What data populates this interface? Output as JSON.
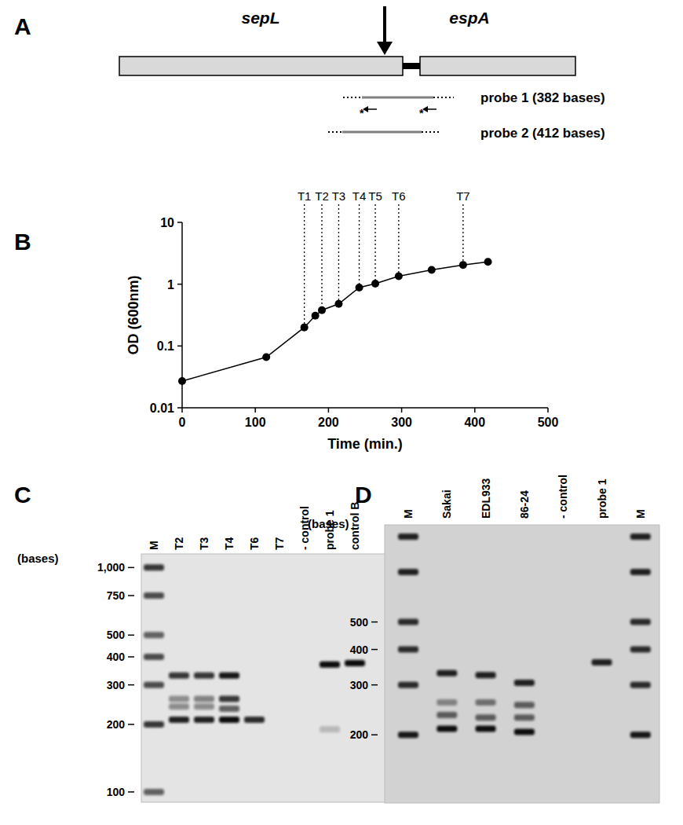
{
  "diagram": {
    "title": "A",
    "genes": [
      "sepL",
      "espA"
    ],
    "probes": [
      "probe 1 (382 bases)",
      "probe 2 (412 bases)"
    ],
    "primer_mark": "*"
  },
  "chart_data": [
    {
      "type": "line",
      "title": "B",
      "x_label": "Time (min.)",
      "y_label": "OD (600nm)",
      "x": [
        0,
        115,
        167,
        182,
        191,
        214,
        242,
        264,
        296,
        341,
        384,
        418
      ],
      "values": [
        0.027,
        0.066,
        0.2,
        0.31,
        0.38,
        0.48,
        0.88,
        1.02,
        1.35,
        1.7,
        2.05,
        2.3
      ],
      "xlim": [
        0,
        500
      ],
      "ylim": [
        0.01,
        10
      ],
      "xticks": [
        0,
        100,
        200,
        300,
        400,
        500
      ],
      "yticks": [
        0.01,
        0.1,
        1,
        10
      ],
      "log": "y",
      "color": "#000000",
      "marker": "circle",
      "line_style": "solid",
      "annotations": [
        {
          "label": "T1",
          "x": 167
        },
        {
          "label": "T2",
          "x": 191
        },
        {
          "label": "T3",
          "x": 214
        },
        {
          "label": "T4",
          "x": 242
        },
        {
          "label": "T5",
          "x": 264
        },
        {
          "label": "T6",
          "x": 296
        },
        {
          "label": "T7",
          "x": 384
        }
      ]
    },
    {
      "type": "gel",
      "title": "C",
      "y_label": "(bases)",
      "categories": [
        "M",
        "T2",
        "T3",
        "T4",
        "T6",
        "T7",
        "- control",
        "probe 1",
        "control B"
      ],
      "bands": [
        [
          {
            "value": 1000,
            "intensity": 0.8
          },
          {
            "value": 750,
            "intensity": 0.7
          },
          {
            "value": 500,
            "intensity": 0.6
          },
          {
            "value": 400,
            "intensity": 0.7
          },
          {
            "value": 300,
            "intensity": 0.7
          },
          {
            "value": 200,
            "intensity": 0.8
          },
          {
            "value": 100,
            "intensity": 0.6
          }
        ],
        [
          {
            "value": 330,
            "intensity": 0.8
          },
          {
            "value": 260,
            "intensity": 0.4
          },
          {
            "value": 240,
            "intensity": 0.4
          },
          {
            "value": 210,
            "intensity": 0.9
          }
        ],
        [
          {
            "value": 330,
            "intensity": 0.8
          },
          {
            "value": 260,
            "intensity": 0.45
          },
          {
            "value": 240,
            "intensity": 0.4
          },
          {
            "value": 210,
            "intensity": 0.9
          }
        ],
        [
          {
            "value": 330,
            "intensity": 0.95
          },
          {
            "value": 260,
            "intensity": 0.8
          },
          {
            "value": 235,
            "intensity": 0.6
          },
          {
            "value": 210,
            "intensity": 1
          }
        ],
        [
          {
            "value": 210,
            "intensity": 0.85
          }
        ],
        [],
        [],
        [
          {
            "value": 370,
            "intensity": 1
          },
          {
            "value": 190,
            "intensity": 0.2
          }
        ],
        [
          {
            "value": 375,
            "intensity": 1
          }
        ]
      ],
      "ylim": [
        90,
        1150
      ],
      "yticks": [
        {
          "value": 1000,
          "label": "1,000"
        },
        750,
        500,
        400,
        300,
        200,
        100
      ],
      "log": "y"
    },
    {
      "type": "gel",
      "title": "D",
      "y_label": "(bases)",
      "categories": [
        "M",
        "Sakai",
        "EDL933",
        "86-24",
        "- control",
        "probe 1",
        "M"
      ],
      "bands": [
        [
          {
            "value": 1000,
            "intensity": 0.9
          },
          {
            "value": 750,
            "intensity": 0.9
          },
          {
            "value": 500,
            "intensity": 0.85
          },
          {
            "value": 400,
            "intensity": 0.85
          },
          {
            "value": 300,
            "intensity": 0.85
          },
          {
            "value": 200,
            "intensity": 0.95
          }
        ],
        [
          {
            "value": 330,
            "intensity": 0.9
          },
          {
            "value": 260,
            "intensity": 0.4
          },
          {
            "value": 235,
            "intensity": 0.6
          },
          {
            "value": 210,
            "intensity": 1
          }
        ],
        [
          {
            "value": 325,
            "intensity": 0.9
          },
          {
            "value": 260,
            "intensity": 0.5
          },
          {
            "value": 230,
            "intensity": 0.6
          },
          {
            "value": 210,
            "intensity": 1
          }
        ],
        [
          {
            "value": 305,
            "intensity": 0.9
          },
          {
            "value": 255,
            "intensity": 0.6
          },
          {
            "value": 230,
            "intensity": 0.6
          },
          {
            "value": 205,
            "intensity": 1
          }
        ],
        [],
        [
          {
            "value": 360,
            "intensity": 0.9
          }
        ],
        [
          {
            "value": 1000,
            "intensity": 0.9
          },
          {
            "value": 750,
            "intensity": 0.9
          },
          {
            "value": 500,
            "intensity": 0.85
          },
          {
            "value": 400,
            "intensity": 0.85
          },
          {
            "value": 300,
            "intensity": 0.85
          },
          {
            "value": 200,
            "intensity": 0.95
          }
        ]
      ],
      "ylim": [
        115,
        1100
      ],
      "yticks": [
        500,
        400,
        300,
        200
      ],
      "log": "y"
    }
  ]
}
